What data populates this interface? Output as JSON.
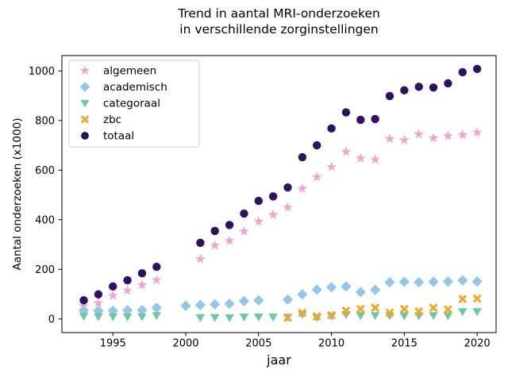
{
  "chart_data": {
    "type": "scatter",
    "title": "Trend in aantal MRI-onderzoeken\nin verschillende zorginstellingen",
    "title_lines": [
      "Trend in aantal MRI-onderzoeken",
      "in verschillende zorginstellingen"
    ],
    "xlabel": "jaar",
    "ylabel": "Aantal onderzoeken (x1000)",
    "xticks": [
      1995,
      2000,
      2005,
      2010,
      2015,
      2020
    ],
    "yticks": [
      0,
      200,
      400,
      600,
      800,
      1000
    ],
    "xlim": [
      1991.5,
      2021.3
    ],
    "ylim": [
      -55,
      1062
    ],
    "grid": false,
    "legend_position": "upper left",
    "background_color": "#ffffff",
    "series": [
      {
        "name": "algemeen",
        "marker": "star",
        "color": "#f2a2ce",
        "points": [
          [
            1993,
            52
          ],
          [
            1994,
            64
          ],
          [
            1995,
            94
          ],
          [
            1996,
            115
          ],
          [
            1997,
            137
          ],
          [
            1998,
            157
          ],
          [
            2001,
            242
          ],
          [
            2002,
            296
          ],
          [
            2003,
            315
          ],
          [
            2004,
            353
          ],
          [
            2005,
            393
          ],
          [
            2006,
            420
          ],
          [
            2007,
            450
          ],
          [
            2008,
            526
          ],
          [
            2009,
            572
          ],
          [
            2010,
            613
          ],
          [
            2011,
            674
          ],
          [
            2012,
            648
          ],
          [
            2013,
            643
          ],
          [
            2014,
            726
          ],
          [
            2015,
            721
          ],
          [
            2016,
            745
          ],
          [
            2017,
            729
          ],
          [
            2018,
            738
          ],
          [
            2019,
            742
          ],
          [
            2020,
            752
          ]
        ]
      },
      {
        "name": "academisch",
        "marker": "diamond",
        "color": "#93c6e9",
        "points": [
          [
            1993,
            35
          ],
          [
            1994,
            33
          ],
          [
            1995,
            33
          ],
          [
            1996,
            35
          ],
          [
            1997,
            36
          ],
          [
            1998,
            45
          ],
          [
            2000,
            53
          ],
          [
            2001,
            56
          ],
          [
            2002,
            59
          ],
          [
            2003,
            61
          ],
          [
            2004,
            72
          ],
          [
            2005,
            75
          ],
          [
            2007,
            78
          ],
          [
            2008,
            99
          ],
          [
            2009,
            118
          ],
          [
            2010,
            128
          ],
          [
            2011,
            131
          ],
          [
            2012,
            108
          ],
          [
            2013,
            117
          ],
          [
            2014,
            148
          ],
          [
            2015,
            150
          ],
          [
            2016,
            148
          ],
          [
            2017,
            150
          ],
          [
            2018,
            151
          ],
          [
            2019,
            155
          ],
          [
            2020,
            151
          ]
        ]
      },
      {
        "name": "categoraal",
        "marker": "triangle-down",
        "color": "#6cc9a6",
        "points": [
          [
            1993,
            11
          ],
          [
            1994,
            9
          ],
          [
            1995,
            9
          ],
          [
            1996,
            9
          ],
          [
            1997,
            9
          ],
          [
            1998,
            14
          ],
          [
            2001,
            6
          ],
          [
            2002,
            6
          ],
          [
            2003,
            5
          ],
          [
            2004,
            8
          ],
          [
            2005,
            8
          ],
          [
            2006,
            8
          ],
          [
            2007,
            7
          ],
          [
            2008,
            18
          ],
          [
            2009,
            6
          ],
          [
            2010,
            12
          ],
          [
            2011,
            18
          ],
          [
            2012,
            14
          ],
          [
            2013,
            14
          ],
          [
            2014,
            14
          ],
          [
            2015,
            13
          ],
          [
            2016,
            13
          ],
          [
            2017,
            14
          ],
          [
            2018,
            13
          ],
          [
            2019,
            30
          ],
          [
            2020,
            30
          ]
        ]
      },
      {
        "name": "zbc",
        "marker": "x",
        "color": "#f5a527",
        "points": [
          [
            2007,
            5
          ],
          [
            2008,
            25
          ],
          [
            2009,
            10
          ],
          [
            2010,
            15
          ],
          [
            2011,
            33
          ],
          [
            2012,
            40
          ],
          [
            2013,
            45
          ],
          [
            2014,
            25
          ],
          [
            2015,
            40
          ],
          [
            2016,
            30
          ],
          [
            2017,
            45
          ],
          [
            2018,
            38
          ],
          [
            2019,
            80
          ],
          [
            2020,
            82
          ]
        ]
      },
      {
        "name": "totaal",
        "marker": "circle",
        "color": "#301060",
        "points": [
          [
            1993,
            75
          ],
          [
            1994,
            99
          ],
          [
            1995,
            131
          ],
          [
            1996,
            156
          ],
          [
            1997,
            184
          ],
          [
            1998,
            210
          ],
          [
            2001,
            307
          ],
          [
            2002,
            355
          ],
          [
            2003,
            379
          ],
          [
            2004,
            425
          ],
          [
            2005,
            476
          ],
          [
            2006,
            494
          ],
          [
            2007,
            530
          ],
          [
            2008,
            652
          ],
          [
            2009,
            700
          ],
          [
            2010,
            768
          ],
          [
            2011,
            833
          ],
          [
            2012,
            803
          ],
          [
            2013,
            806
          ],
          [
            2014,
            899
          ],
          [
            2015,
            922
          ],
          [
            2016,
            936
          ],
          [
            2017,
            933
          ],
          [
            2018,
            950
          ],
          [
            2019,
            995
          ],
          [
            2020,
            1008
          ]
        ]
      }
    ]
  }
}
